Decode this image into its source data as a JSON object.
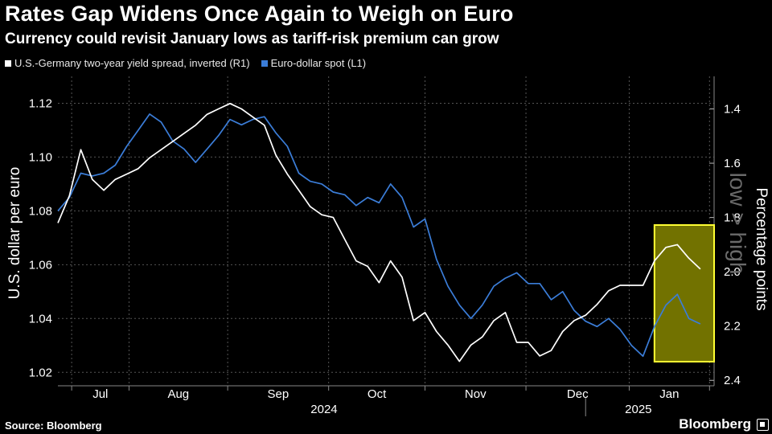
{
  "header": {
    "title": "Rates Gap Widens Once Again to Weigh on Euro",
    "subtitle": "Currency could revisit January lows as tariff-risk premium can grow"
  },
  "legend": {
    "white_label": "U.S.-Germany two-year yield spread, inverted (R1)",
    "blue_label": "Euro-dollar spot (L1)"
  },
  "footer": {
    "source": "Source: Bloomberg",
    "brand": "Bloomberg"
  },
  "colors": {
    "background": "#000000",
    "white_series": "#ffffff",
    "blue_series": "#3b7dd8",
    "highlight": "#ffff33"
  },
  "chart_data": {
    "type": "line",
    "x_labels": [
      "Jul",
      "Aug",
      "Sep",
      "Oct",
      "Nov",
      "Dec",
      "Jan"
    ],
    "year_labels": [
      "2024",
      "2025"
    ],
    "left_axis": {
      "label": "U.S. dollar per euro",
      "ylim": [
        1.015,
        1.13
      ],
      "ticks": [
        "1.02",
        "1.04",
        "1.06",
        "1.08",
        "1.10",
        "1.12"
      ]
    },
    "right_axis": {
      "label": "Percentage points",
      "annotation": "low > high",
      "ylim": [
        2.42,
        1.28
      ],
      "inverted": true,
      "ticks": [
        "1.4",
        "1.6",
        "1.8",
        "2.0",
        "2.2",
        "2.4"
      ]
    },
    "x_range": [
      0,
      28.6
    ],
    "highlight": {
      "from_week": 26.0,
      "to_week": 28.6,
      "note": "highlighted recent period"
    },
    "series": [
      {
        "name": "Euro-dollar spot",
        "axis": "left",
        "x": [
          0,
          0.5,
          1,
          1.5,
          2,
          2.5,
          3,
          3.5,
          4,
          4.5,
          5,
          5.5,
          6,
          6.5,
          7,
          7.5,
          8,
          8.5,
          9,
          9.5,
          10,
          10.5,
          11,
          11.5,
          12,
          12.5,
          13,
          13.5,
          14,
          14.5,
          15,
          15.5,
          16,
          16.5,
          17,
          17.5,
          18,
          18.5,
          19,
          19.5,
          20,
          20.5,
          21,
          21.5,
          22,
          22.5,
          23,
          23.5,
          24,
          24.5,
          25,
          25.5,
          26,
          26.5,
          27,
          27.5,
          28
        ],
        "values": [
          1.08,
          1.085,
          1.094,
          1.093,
          1.094,
          1.097,
          1.104,
          1.11,
          1.116,
          1.113,
          1.106,
          1.103,
          1.098,
          1.103,
          1.108,
          1.114,
          1.112,
          1.114,
          1.115,
          1.109,
          1.104,
          1.094,
          1.091,
          1.09,
          1.087,
          1.086,
          1.082,
          1.085,
          1.083,
          1.09,
          1.085,
          1.074,
          1.077,
          1.062,
          1.052,
          1.045,
          1.04,
          1.045,
          1.052,
          1.055,
          1.057,
          1.053,
          1.053,
          1.047,
          1.05,
          1.043,
          1.039,
          1.037,
          1.04,
          1.036,
          1.03,
          1.026,
          1.037,
          1.045,
          1.049,
          1.04,
          1.038
        ]
      },
      {
        "name": "U.S.-Germany two-year yield spread, inverted",
        "axis": "right",
        "x": [
          0,
          0.5,
          1,
          1.5,
          2,
          2.5,
          3,
          3.5,
          4,
          4.5,
          5,
          5.5,
          6,
          6.5,
          7,
          7.5,
          8,
          8.5,
          9,
          9.5,
          10,
          10.5,
          11,
          11.5,
          12,
          12.5,
          13,
          13.5,
          14,
          14.5,
          15,
          15.5,
          16,
          16.5,
          17,
          17.5,
          18,
          18.5,
          19,
          19.5,
          20,
          20.5,
          21,
          21.5,
          22,
          22.5,
          23,
          23.5,
          24,
          24.5,
          25,
          25.5,
          26,
          26.5,
          27,
          27.5,
          28
        ],
        "values": [
          1.82,
          1.72,
          1.55,
          1.66,
          1.7,
          1.66,
          1.64,
          1.62,
          1.58,
          1.55,
          1.52,
          1.49,
          1.46,
          1.42,
          1.4,
          1.38,
          1.4,
          1.43,
          1.46,
          1.57,
          1.64,
          1.7,
          1.76,
          1.79,
          1.8,
          1.88,
          1.96,
          1.98,
          2.04,
          1.96,
          2.02,
          2.18,
          2.15,
          2.22,
          2.27,
          2.33,
          2.27,
          2.24,
          2.18,
          2.15,
          2.26,
          2.26,
          2.31,
          2.29,
          2.22,
          2.18,
          2.16,
          2.12,
          2.07,
          2.05,
          2.05,
          2.05,
          1.96,
          1.91,
          1.9,
          1.95,
          1.99
        ]
      }
    ]
  }
}
